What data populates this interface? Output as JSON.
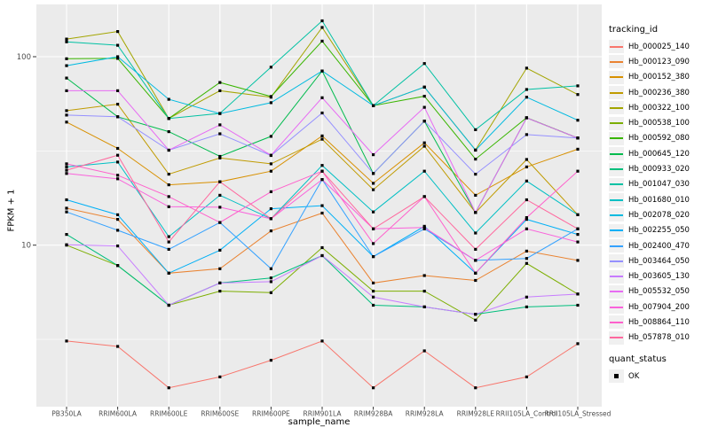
{
  "chart_data": {
    "type": "line",
    "title": "",
    "xlabel": "sample_name",
    "ylabel": "FPKM + 1",
    "y_scale": "log10",
    "y_ticks": [
      10,
      100
    ],
    "y_minor_ticks": [
      3.162,
      31.62
    ],
    "ylim": [
      1.35,
      190
    ],
    "grid": true,
    "legend_position": "right",
    "marker": "black-square",
    "categories": [
      "PB350LA",
      "RRIM600LA",
      "RRIM600LE",
      "RRIM600SE",
      "RRIM600PE",
      "RRIM901LA",
      "RRIM928BA",
      "RRIM928LA",
      "RRIM928LE",
      "RRII105LA_Control",
      "RRII105LA_Stressed"
    ],
    "series": [
      {
        "name": "Hb_000025_140",
        "color": "#F8766D",
        "values": [
          3.1,
          2.9,
          1.75,
          2.0,
          2.45,
          3.1,
          1.75,
          2.75,
          1.75,
          2.0,
          3.0
        ]
      },
      {
        "name": "Hb_000123_090",
        "color": "#EA8331",
        "values": [
          15.7,
          13.7,
          7.1,
          7.5,
          11.9,
          14.8,
          6.3,
          6.9,
          6.5,
          9.3,
          8.3
        ]
      },
      {
        "name": "Hb_000152_380",
        "color": "#D89000",
        "values": [
          45,
          32.6,
          20.9,
          21.7,
          24.7,
          38,
          21.3,
          34.9,
          18.4,
          26,
          32.3
        ]
      },
      {
        "name": "Hb_000236_380",
        "color": "#C09B00",
        "values": [
          51.7,
          56,
          23.8,
          29,
          27,
          36.5,
          19.7,
          33.5,
          14.9,
          28.5,
          14.5
        ]
      },
      {
        "name": "Hb_000322_100",
        "color": "#A3A500",
        "values": [
          124,
          136,
          47,
          66,
          61,
          143,
          55,
          69,
          32,
          87,
          63
        ]
      },
      {
        "name": "Hb_000538_100",
        "color": "#7CAE00",
        "values": [
          10,
          7.8,
          4.8,
          5.7,
          5.6,
          9.7,
          5.7,
          5.7,
          4.0,
          8.0,
          5.5
        ]
      },
      {
        "name": "Hb_000592_080",
        "color": "#39B600",
        "values": [
          97.5,
          98,
          47,
          73,
          61.5,
          121,
          55,
          61.7,
          28.6,
          47.5,
          37
        ]
      },
      {
        "name": "Hb_000645_120",
        "color": "#00BB4E",
        "values": [
          77,
          48,
          40,
          29.6,
          37.8,
          84,
          24,
          45.5,
          14.9,
          47.4,
          37
        ]
      },
      {
        "name": "Hb_000933_020",
        "color": "#00BF7D",
        "values": [
          11.4,
          7.8,
          4.8,
          6.3,
          6.7,
          8.8,
          4.8,
          4.7,
          4.3,
          4.7,
          4.8
        ]
      },
      {
        "name": "Hb_001047_030",
        "color": "#00C1A3",
        "values": [
          120,
          115,
          47,
          50,
          88,
          155,
          55,
          92,
          41,
          67,
          70
        ]
      },
      {
        "name": "Hb_001680_010",
        "color": "#00BFC4",
        "values": [
          26,
          27.6,
          11.1,
          18.4,
          13.8,
          26.5,
          15,
          24.7,
          11.6,
          21.9,
          14.5
        ]
      },
      {
        "name": "Hb_002078_020",
        "color": "#00BAE0",
        "values": [
          89.6,
          100,
          59.4,
          49.9,
          57,
          84,
          55,
          69,
          31.9,
          61,
          46
        ]
      },
      {
        "name": "Hb_002255_050",
        "color": "#00B0F6",
        "values": [
          17.4,
          14.5,
          7.1,
          9.4,
          15.6,
          16.2,
          8.7,
          12.6,
          7.1,
          13.7,
          11.4
        ]
      },
      {
        "name": "Hb_002400_470",
        "color": "#35A2FF",
        "values": [
          15,
          12,
          9.5,
          13.2,
          7.5,
          22.3,
          8.7,
          12.2,
          8.3,
          8.5,
          12.2
        ]
      },
      {
        "name": "Hb_003464_050",
        "color": "#9590FF",
        "values": [
          49,
          48,
          31.9,
          39,
          29.9,
          50.3,
          24,
          45.5,
          23.8,
          38.6,
          37
        ]
      },
      {
        "name": "Hb_003605_130",
        "color": "#C77CFF",
        "values": [
          10.05,
          9.9,
          4.8,
          6.3,
          6.4,
          8.8,
          5.3,
          4.7,
          4.3,
          5.3,
          5.5
        ]
      },
      {
        "name": "Hb_005532_050",
        "color": "#E76BF3",
        "values": [
          66,
          66,
          31.9,
          43.5,
          30,
          60.6,
          30.2,
          53.9,
          14.9,
          47.4,
          37
        ]
      },
      {
        "name": "Hb_007904_200",
        "color": "#FA62DB",
        "values": [
          24,
          22.5,
          16,
          15.9,
          13.8,
          22.3,
          12.2,
          12.4,
          8.3,
          12.2,
          10.4
        ]
      },
      {
        "name": "Hb_008864_110",
        "color": "#FF61CC",
        "values": [
          27,
          23.5,
          18.1,
          13.2,
          19.2,
          24.7,
          10.2,
          18.1,
          7.1,
          14,
          24.7
        ]
      },
      {
        "name": "Hb_057878_010",
        "color": "#FF689E",
        "values": [
          25,
          30,
          10.4,
          21.7,
          13.8,
          24.7,
          12.2,
          18.1,
          9.5,
          17.4,
          12.2
        ]
      }
    ],
    "legend": {
      "tracking_title": "tracking_id",
      "quant_title": "quant_status",
      "quant_value": "OK"
    }
  },
  "colors": {
    "panel_bg": "#EBEBEB",
    "grid": "#FFFFFF",
    "axis_text": "#4D4D4D",
    "tick_mark": "#333333",
    "marker": "#000000"
  }
}
